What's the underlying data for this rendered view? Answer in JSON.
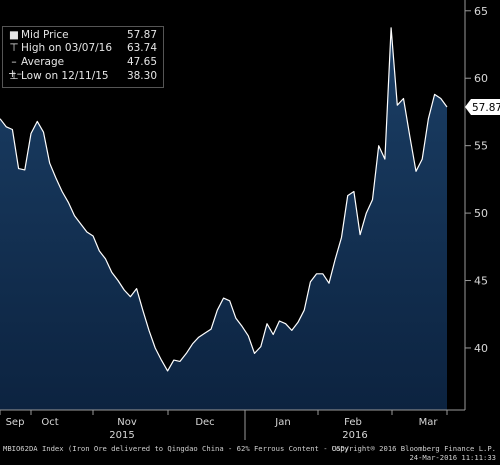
{
  "chart_data": {
    "type": "area",
    "series": [
      {
        "name": "Mid Price",
        "values": [
          57.0,
          56.4,
          56.2,
          53.3,
          53.2,
          55.9,
          56.8,
          56.0,
          53.7,
          52.6,
          51.6,
          50.8,
          49.8,
          49.2,
          48.6,
          48.3,
          47.2,
          46.6,
          45.6,
          45.0,
          44.3,
          43.8,
          44.4,
          42.8,
          41.3,
          40.0,
          39.1,
          38.3,
          39.1,
          39.0,
          39.6,
          40.3,
          40.8,
          41.1,
          41.4,
          42.8,
          43.7,
          43.5,
          42.2,
          41.6,
          40.9,
          39.6,
          40.1,
          41.8,
          41.0,
          42.0,
          41.8,
          41.3,
          41.9,
          42.8,
          44.9,
          45.5,
          45.5,
          44.8,
          46.6,
          48.2,
          51.3,
          51.6,
          48.4,
          50.0,
          51.0,
          55.0,
          54.0,
          63.74,
          58.0,
          58.5,
          55.7,
          53.1,
          54.0,
          57.0,
          58.8,
          58.5,
          57.87
        ]
      }
    ],
    "ylim": [
      35.4,
      65.8
    ],
    "yticks": [
      "40",
      "45",
      "50",
      "55",
      "60",
      "65"
    ],
    "month_labels": [
      "Sep",
      "Oct",
      "Nov",
      "Dec",
      "Jan",
      "Feb",
      "Mar"
    ],
    "year_labels": [
      "2015",
      "2016"
    ],
    "last_value_label": "57.87",
    "grid": false,
    "fill_color": "#1b3f66",
    "line_color": "#ffffff",
    "background": "#000000",
    "legend_position": "top-left",
    "legend": [
      {
        "icon": "square-icon",
        "symbol": "■",
        "label": "Mid Price",
        "value": "57.87"
      },
      {
        "icon": "high-marker-icon",
        "symbol": "⊤",
        "label": "High on 03/07/16",
        "value": "63.74"
      },
      {
        "icon": "average-marker-icon",
        "symbol": "–+–",
        "label": "Average",
        "value": "47.65"
      },
      {
        "icon": "low-marker-icon",
        "symbol": "⊥",
        "label": "Low on 12/11/15",
        "value": "38.30"
      }
    ]
  },
  "footer": {
    "left": "MBIO62DA Index (Iron Ore delivered to Qingdao China - 62% Ferrous Content - USD/",
    "right_line1": "Copyright® 2016 Bloomberg Finance L.P.",
    "right_line2": "24-Mar-2016 11:11:33"
  }
}
